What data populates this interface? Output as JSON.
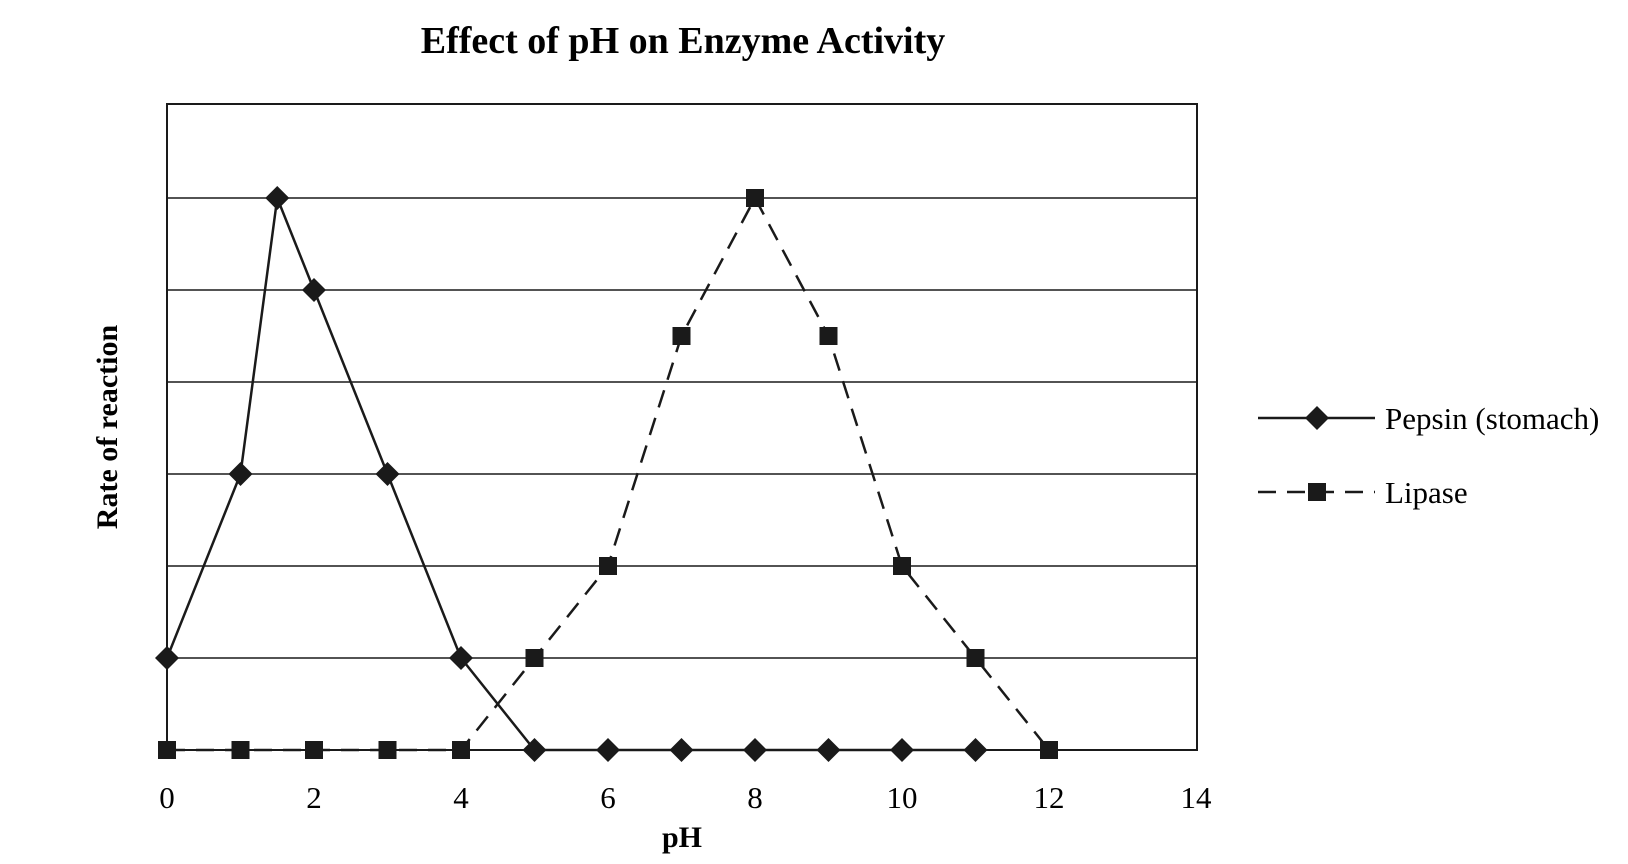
{
  "chart_data": {
    "type": "line",
    "title": "Effect of pH on Enzyme Activity",
    "xlabel": "pH",
    "ylabel": "Rate of reaction",
    "xlim": [
      0,
      14
    ],
    "ylim": [
      0,
      7
    ],
    "x_ticks": [
      0,
      2,
      4,
      6,
      8,
      10,
      12,
      14
    ],
    "x_tick_labels": [
      "0",
      "2",
      "4",
      "6",
      "8",
      "10",
      "12",
      "14"
    ],
    "y_gridlines": [
      1,
      2,
      3,
      4,
      5,
      6
    ],
    "y_tick_labels_shown": false,
    "grid": "horizontal",
    "legend_position": "right",
    "series": [
      {
        "name": "Pepsin (stomach)",
        "line_style": "solid",
        "marker": "diamond",
        "color": "#1a1a1a",
        "x": [
          0,
          1,
          1.5,
          2,
          3,
          4,
          5,
          6,
          7,
          8,
          9,
          10,
          11
        ],
        "y": [
          1,
          3,
          6,
          5,
          3,
          1,
          0,
          0,
          0,
          0,
          0,
          0,
          0
        ]
      },
      {
        "name": "Lipase",
        "line_style": "dashed",
        "marker": "square",
        "color": "#1a1a1a",
        "x": [
          0,
          1,
          2,
          3,
          4,
          5,
          6,
          7,
          8,
          9,
          10,
          11,
          12
        ],
        "y": [
          0,
          0,
          0,
          0,
          0,
          1,
          2,
          4.5,
          6,
          4.5,
          2,
          1,
          0
        ]
      }
    ]
  }
}
